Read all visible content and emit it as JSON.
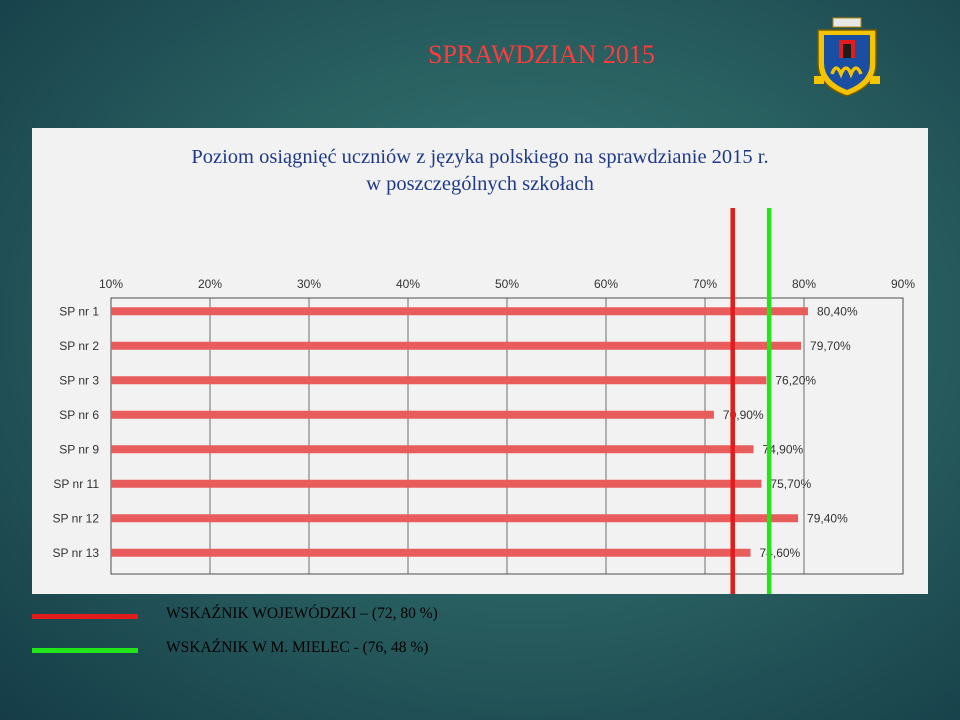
{
  "slide": {
    "title": "SPRAWDZIAN 2015"
  },
  "colors": {
    "bar": "#e85c5c",
    "wojewodzki_line": "#e21b1b",
    "mielec_line": "#22e51a",
    "title_red": "#ff3b3b",
    "chart_title": "#1f3a8a",
    "crest_blue": "#1a4ea3",
    "crest_yellow": "#f5c400"
  },
  "chart_data": {
    "type": "bar",
    "orientation": "horizontal",
    "title": "Poziom osiągnięć uczniów z języka polskiego na sprawdzianie 2015 r.",
    "subtitle": "w poszczególnych szkołach",
    "categories": [
      "SP nr 1",
      "SP nr 2",
      "SP nr 3",
      "SP nr 6",
      "SP nr 9",
      "SP nr 11",
      "SP nr 12",
      "SP nr 13"
    ],
    "values": [
      80.4,
      79.7,
      76.2,
      70.9,
      74.9,
      75.7,
      79.4,
      74.6
    ],
    "data_labels": [
      "80,40%",
      "79,70%",
      "76,20%",
      "70,90%",
      "74,90%",
      "75,70%",
      "79,40%",
      "74,60%"
    ],
    "x_ticks": [
      10,
      20,
      30,
      40,
      50,
      60,
      70,
      80,
      90
    ],
    "x_tick_labels": [
      "10%",
      "20%",
      "30%",
      "40%",
      "50%",
      "60%",
      "70%",
      "80%",
      "90%"
    ],
    "xlim": [
      10,
      90
    ],
    "x_axis_position": "top",
    "grid": "vertical",
    "reference_lines": [
      {
        "label": "WSKAŹNIK WOJEWÓDZKI – (72, 80 %)",
        "value": 72.8,
        "color": "#e21b1b"
      },
      {
        "label": "WSKAŹNIK W M. MIELEC - (76, 48 %)",
        "value": 76.48,
        "color": "#22e51a"
      }
    ]
  }
}
